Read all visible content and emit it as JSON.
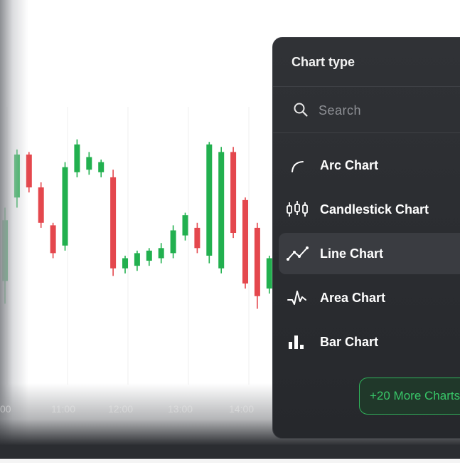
{
  "chart": {
    "time_labels": [
      "00",
      "11:00",
      "12:00",
      "13:00",
      "14:00"
    ],
    "colors": {
      "up": "#22b04f",
      "down": "#e4474d",
      "grid": "#efefef"
    },
    "candles": [
      {
        "open": 41,
        "close": 65,
        "high": 70,
        "low": 32,
        "dir": "up"
      },
      {
        "open": 74,
        "close": 91,
        "high": 93,
        "low": 70,
        "dir": "up"
      },
      {
        "open": 91,
        "close": 78,
        "high": 92,
        "low": 76,
        "dir": "down"
      },
      {
        "open": 78,
        "close": 64,
        "high": 80,
        "low": 62,
        "dir": "down"
      },
      {
        "open": 63,
        "close": 52,
        "high": 64,
        "low": 50,
        "dir": "down"
      },
      {
        "open": 55,
        "close": 86,
        "high": 88,
        "low": 53,
        "dir": "up"
      },
      {
        "open": 84,
        "close": 95,
        "high": 97,
        "low": 82,
        "dir": "up"
      },
      {
        "open": 85,
        "close": 90,
        "high": 92,
        "low": 83,
        "dir": "up"
      },
      {
        "open": 84,
        "close": 88,
        "high": 89,
        "low": 82,
        "dir": "up"
      },
      {
        "open": 82,
        "close": 46,
        "high": 85,
        "low": 43,
        "dir": "down"
      },
      {
        "open": 46,
        "close": 50,
        "high": 51,
        "low": 44,
        "dir": "up"
      },
      {
        "open": 47,
        "close": 52,
        "high": 53,
        "low": 45,
        "dir": "up"
      },
      {
        "open": 49,
        "close": 53,
        "high": 54,
        "low": 47,
        "dir": "up"
      },
      {
        "open": 50,
        "close": 54,
        "high": 56,
        "low": 48,
        "dir": "up"
      },
      {
        "open": 52,
        "close": 61,
        "high": 63,
        "low": 50,
        "dir": "up"
      },
      {
        "open": 59,
        "close": 67,
        "high": 68,
        "low": 57,
        "dir": "up"
      },
      {
        "open": 62,
        "close": 54,
        "high": 64,
        "low": 52,
        "dir": "down"
      },
      {
        "open": 51,
        "close": 95,
        "high": 96,
        "low": 48,
        "dir": "up"
      },
      {
        "open": 46,
        "close": 92,
        "high": 94,
        "low": 44,
        "dir": "up"
      },
      {
        "open": 92,
        "close": 60,
        "high": 94,
        "low": 58,
        "dir": "down"
      },
      {
        "open": 73,
        "close": 40,
        "high": 74,
        "low": 38,
        "dir": "down"
      },
      {
        "open": 62,
        "close": 35,
        "high": 64,
        "low": 30,
        "dir": "down"
      },
      {
        "open": 38,
        "close": 50,
        "high": 51,
        "low": 36,
        "dir": "up"
      }
    ]
  },
  "panel": {
    "title": "Chart type",
    "search": {
      "placeholder": "Search"
    },
    "items": [
      {
        "label": "Arc Chart",
        "icon": "arc-chart-icon",
        "selected": false
      },
      {
        "label": "Candlestick Chart",
        "icon": "candlestick-chart-icon",
        "selected": false
      },
      {
        "label": "Line Chart",
        "icon": "line-chart-icon",
        "selected": true
      },
      {
        "label": "Area Chart",
        "icon": "area-chart-icon",
        "selected": false
      },
      {
        "label": "Bar Chart",
        "icon": "bar-chart-icon",
        "selected": false
      }
    ],
    "more_button": "+20 More Charts"
  }
}
